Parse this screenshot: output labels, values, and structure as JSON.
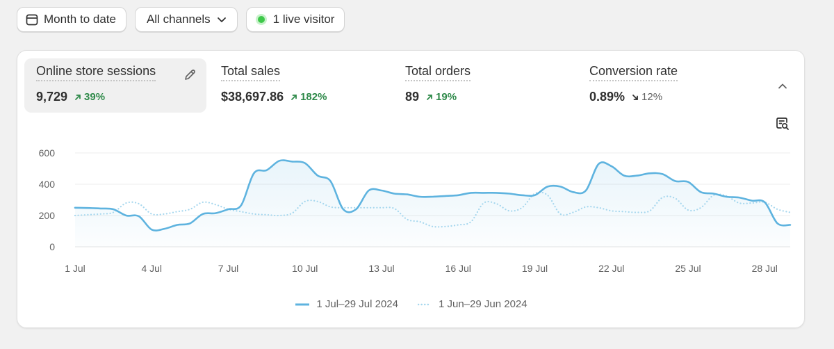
{
  "filters": {
    "date_range": "Month to date",
    "channels": "All channels",
    "live_visitors": "1 live visitor"
  },
  "metrics": [
    {
      "label": "Online store sessions",
      "value": "9,729",
      "delta": "39%",
      "direction": "up"
    },
    {
      "label": "Total sales",
      "value": "$38,697.86",
      "delta": "182%",
      "direction": "up"
    },
    {
      "label": "Total orders",
      "value": "89",
      "delta": "19%",
      "direction": "up"
    },
    {
      "label": "Conversion rate",
      "value": "0.89%",
      "delta": "12%",
      "direction": "down"
    }
  ],
  "colors": {
    "accent": "#5eb3df",
    "previous": "#a6d7ee",
    "up": "#2f8a4a",
    "live": "#3ec84a"
  },
  "icons": {
    "date": "calendar-icon",
    "channels": "chevron-down-icon",
    "edit": "pencil-icon",
    "collapse": "chevron-up-icon",
    "explore": "search-report-icon"
  },
  "chart_data": {
    "type": "line",
    "ylim": [
      0,
      600
    ],
    "yticks": [
      "0",
      "200",
      "400",
      "600"
    ],
    "xlim": [
      1,
      29
    ],
    "xticks": [
      {
        "day": 1,
        "label": "1 Jul"
      },
      {
        "day": 4,
        "label": "4 Jul"
      },
      {
        "day": 7,
        "label": "7 Jul"
      },
      {
        "day": 10,
        "label": "10 Jul"
      },
      {
        "day": 13,
        "label": "13 Jul"
      },
      {
        "day": 16,
        "label": "16 Jul"
      },
      {
        "day": 19,
        "label": "19 Jul"
      },
      {
        "day": 22,
        "label": "22 Jul"
      },
      {
        "day": 25,
        "label": "25 Jul"
      },
      {
        "day": 28,
        "label": "28 Jul"
      }
    ],
    "grid": true,
    "legend_position": "bottom",
    "series": [
      {
        "name": "1 Jul–29 Jul 2024",
        "style": "solid",
        "x": [
          1,
          1.5,
          2,
          2.5,
          3,
          3.5,
          4,
          4.5,
          5,
          5.5,
          6,
          6.5,
          7,
          7.5,
          8,
          8.5,
          9,
          9.5,
          10,
          10.5,
          11,
          11.5,
          12,
          12.5,
          13,
          13.5,
          14,
          14.5,
          15,
          15.5,
          16,
          16.5,
          17,
          17.5,
          18,
          18.5,
          19,
          19.5,
          20,
          20.5,
          21,
          21.5,
          22,
          22.5,
          23,
          23.5,
          24,
          24.5,
          25,
          25.5,
          26,
          26.5,
          27,
          27.5,
          28,
          28.5,
          29
        ],
        "y": [
          250,
          248,
          245,
          240,
          200,
          195,
          110,
          115,
          140,
          150,
          210,
          215,
          240,
          265,
          470,
          490,
          550,
          545,
          535,
          455,
          420,
          240,
          240,
          360,
          360,
          340,
          335,
          320,
          320,
          325,
          330,
          345,
          345,
          345,
          340,
          330,
          330,
          385,
          385,
          350,
          360,
          530,
          515,
          455,
          455,
          470,
          465,
          420,
          415,
          350,
          340,
          320,
          315,
          295,
          285,
          150,
          140
        ]
      },
      {
        "name": "1 Jun–29 Jun 2024",
        "style": "dotted",
        "x": [
          1,
          1.5,
          2,
          2.5,
          3,
          3.5,
          4,
          4.5,
          5,
          5.5,
          6,
          6.5,
          7,
          7.5,
          8,
          8.5,
          9,
          9.5,
          10,
          10.5,
          11,
          11.5,
          12,
          12.5,
          13,
          13.5,
          14,
          14.5,
          15,
          15.5,
          16,
          16.5,
          17,
          17.5,
          18,
          18.5,
          19,
          19.5,
          20,
          20.5,
          21,
          21.5,
          22,
          22.5,
          23,
          23.5,
          24,
          24.5,
          25,
          25.5,
          26,
          26.5,
          27,
          27.5,
          28,
          28.5,
          29
        ],
        "y": [
          200,
          205,
          210,
          220,
          280,
          275,
          210,
          210,
          225,
          240,
          285,
          270,
          240,
          225,
          210,
          205,
          200,
          215,
          290,
          290,
          255,
          250,
          250,
          250,
          250,
          245,
          175,
          160,
          130,
          130,
          140,
          160,
          280,
          275,
          230,
          250,
          340,
          330,
          210,
          220,
          255,
          250,
          230,
          225,
          220,
          230,
          315,
          310,
          235,
          250,
          330,
          325,
          280,
          280,
          285,
          240,
          220
        ]
      }
    ]
  }
}
